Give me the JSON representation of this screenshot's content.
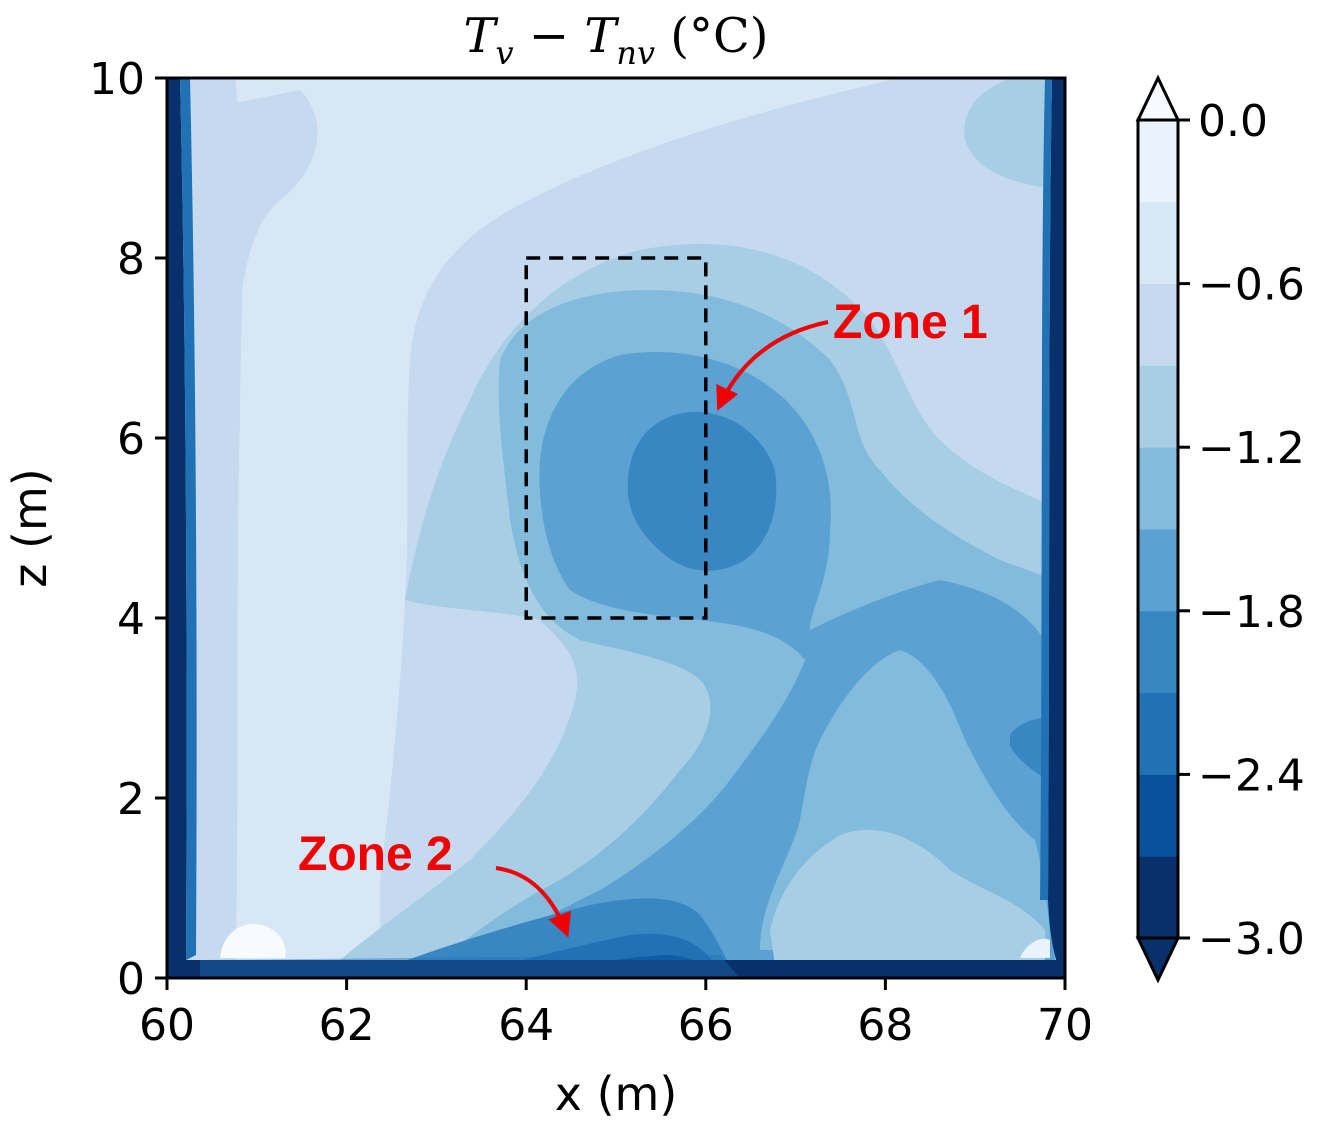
{
  "chart_data": {
    "type": "contour",
    "title": "T_v − T_nv (°C)",
    "title_parts": {
      "t1": "T",
      "sub1": "v",
      "minus": " − ",
      "t2": "T",
      "sub2": "nv",
      "unit": " (°C)"
    },
    "xlabel": "x (m)",
    "ylabel": "z (m)",
    "xlim": [
      60,
      70
    ],
    "ylim": [
      0,
      10
    ],
    "x_ticks": [
      60,
      62,
      64,
      66,
      68,
      70
    ],
    "x_tick_labels": [
      "60",
      "62",
      "64",
      "66",
      "68",
      "70"
    ],
    "y_ticks": [
      0,
      2,
      4,
      6,
      8,
      10
    ],
    "y_tick_labels": [
      "0",
      "2",
      "4",
      "6",
      "8",
      "10"
    ],
    "colorbar": {
      "min": -3.0,
      "max": 0.0,
      "levels": [
        -3.0,
        -2.7,
        -2.4,
        -2.1,
        -1.8,
        -1.5,
        -1.2,
        -0.9,
        -0.6,
        -0.3,
        0.0
      ],
      "tick_values": [
        0.0,
        -0.6,
        -1.2,
        -1.8,
        -2.4,
        -3.0
      ],
      "tick_labels": [
        "0.0",
        "−0.6",
        "−1.2",
        "−1.8",
        "−2.4",
        "−3.0"
      ],
      "colors": [
        "#08306b",
        "#08519c",
        "#2171b5",
        "#3887c2",
        "#5ba2d3",
        "#82bbdb",
        "#a7cee4",
        "#c5daee",
        "#d8e7f5",
        "#eaf2fb",
        "#f7fbff"
      ],
      "extend": "both"
    },
    "field_samples": [
      {
        "x": 65.8,
        "z": 5.4,
        "value": -1.95
      },
      {
        "x": 64.8,
        "z": 0.2,
        "value": -2.6
      },
      {
        "x": 61.0,
        "z": 0.4,
        "value": -0.1
      },
      {
        "x": 62.5,
        "z": 6.0,
        "value": -0.7
      },
      {
        "x": 68.5,
        "z": 1.0,
        "value": -1.3
      },
      {
        "x": 69.7,
        "z": 2.6,
        "value": -2.0
      },
      {
        "x": 60.05,
        "z": 5.0,
        "value": -3.0
      },
      {
        "x": 69.95,
        "z": 5.0,
        "value": -3.0
      }
    ],
    "annotations": [
      {
        "type": "rectangle",
        "style": "dashed",
        "x": [
          64,
          66
        ],
        "z": [
          4,
          8
        ]
      },
      {
        "type": "text",
        "text": "Zone 1",
        "color": "#f00000",
        "arrow_to": {
          "x": 66.15,
          "z": 6.35
        }
      },
      {
        "type": "text",
        "text": "Zone 2",
        "color": "#f00000",
        "arrow_to": {
          "x": 64.45,
          "z": 0.5
        }
      }
    ]
  }
}
